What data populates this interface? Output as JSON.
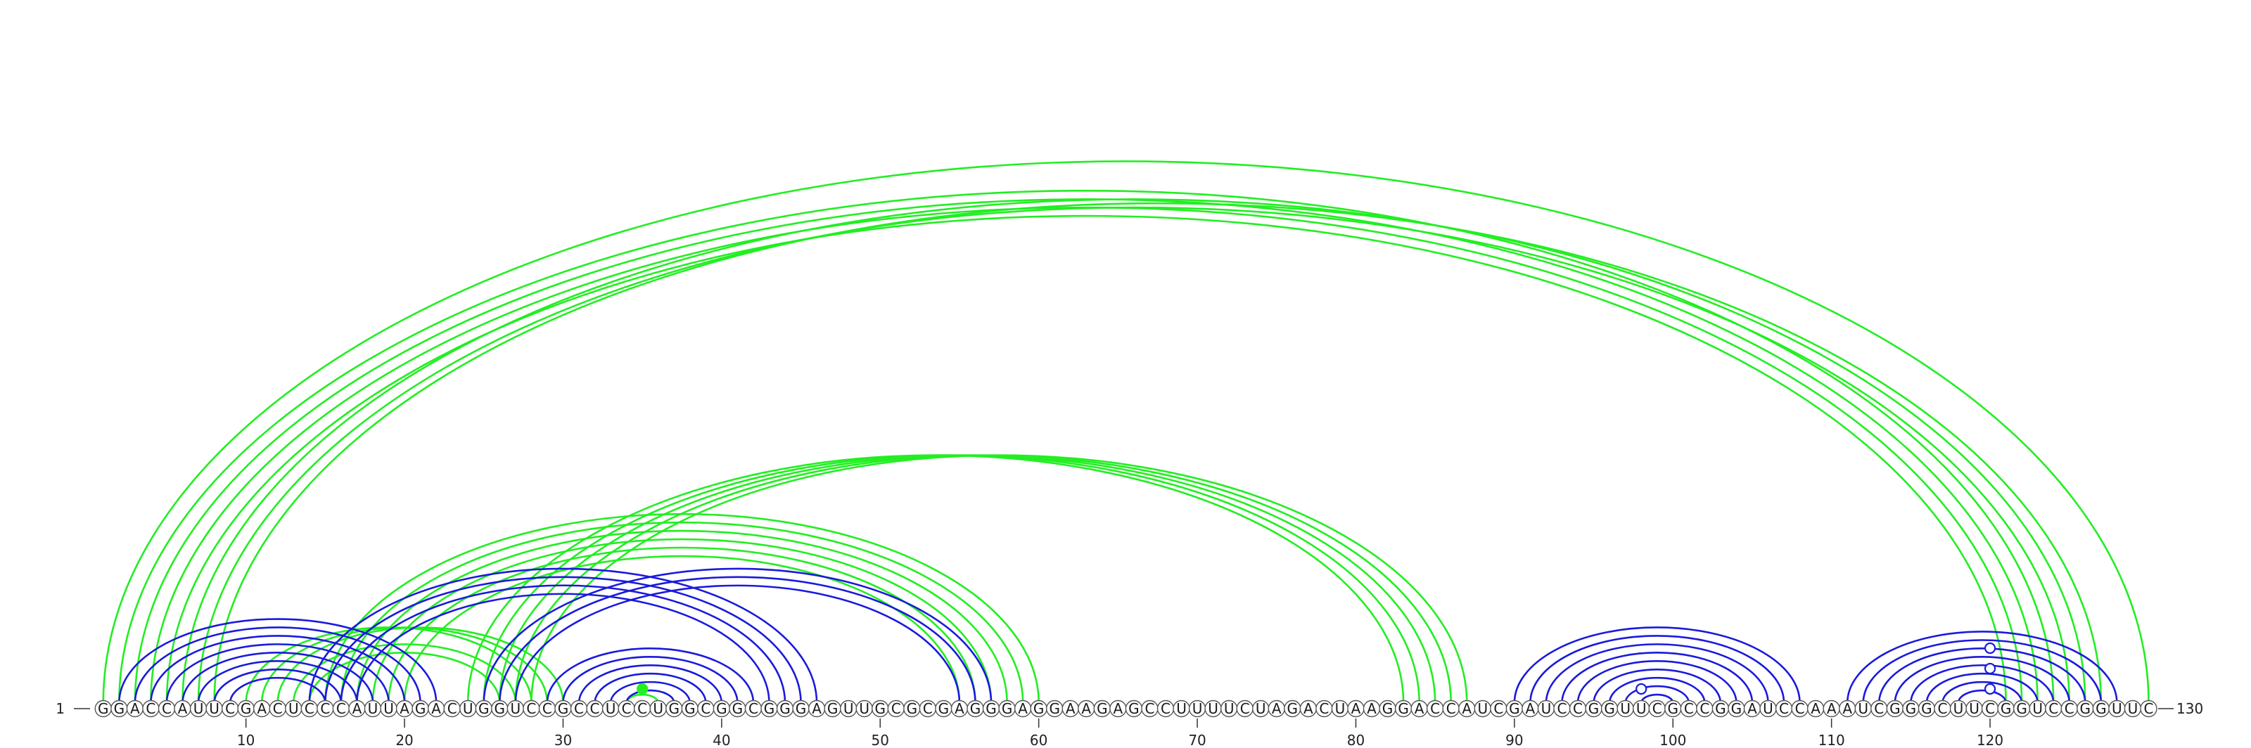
{
  "sequence": "GGACCAUUCGACUCCCAUUAGACUGGUCCGCCUCCUGGCGGCGGGAGUUGCGCGAGGGAGGAAGAGCCUUUUCUAGACUAAGGACCAUCGAUCCGGUUCGCCGGAUCCAAAUCGGGCUUCGGUCCGGUUC",
  "start_label": "1",
  "end_label": "130",
  "axis": {
    "ticks": [
      "10",
      "20",
      "30",
      "40",
      "50",
      "60",
      "70",
      "80",
      "90",
      "100",
      "110",
      "120"
    ]
  },
  "colors": {
    "blue": "#1a1adc",
    "green": "#22ee22",
    "marker_fill": "#ffffff"
  },
  "arcs": {
    "green": [
      [
        1,
        130
      ],
      [
        2,
        124
      ],
      [
        3,
        123
      ],
      [
        4,
        122
      ],
      [
        5,
        121
      ],
      [
        6,
        126
      ],
      [
        7,
        125
      ],
      [
        8,
        127
      ],
      [
        10,
        28
      ],
      [
        11,
        29
      ],
      [
        12,
        30
      ],
      [
        13,
        27
      ],
      [
        14,
        26
      ],
      [
        15,
        60
      ],
      [
        16,
        59
      ],
      [
        17,
        58
      ],
      [
        18,
        57
      ],
      [
        19,
        56
      ],
      [
        20,
        55
      ],
      [
        24,
        83
      ],
      [
        25,
        84
      ],
      [
        26,
        85
      ],
      [
        27,
        86
      ],
      [
        28,
        87
      ],
      [
        34,
        36
      ]
    ],
    "blue": [
      [
        2,
        22
      ],
      [
        3,
        21
      ],
      [
        4,
        20
      ],
      [
        5,
        19
      ],
      [
        6,
        18
      ],
      [
        7,
        17
      ],
      [
        8,
        16
      ],
      [
        9,
        15
      ],
      [
        14,
        46
      ],
      [
        15,
        45
      ],
      [
        16,
        44
      ],
      [
        17,
        43
      ],
      [
        25,
        57
      ],
      [
        26,
        56
      ],
      [
        27,
        55
      ],
      [
        29,
        42
      ],
      [
        30,
        41
      ],
      [
        31,
        40
      ],
      [
        32,
        39
      ],
      [
        33,
        38
      ],
      [
        34,
        37
      ],
      [
        90,
        108
      ],
      [
        91,
        107
      ],
      [
        92,
        106
      ],
      [
        93,
        105
      ],
      [
        94,
        104
      ],
      [
        95,
        103
      ],
      [
        96,
        102
      ],
      [
        97,
        101
      ],
      [
        98,
        100
      ],
      [
        111,
        128
      ],
      [
        112,
        127
      ],
      [
        113,
        126
      ],
      [
        114,
        125
      ],
      [
        115,
        124
      ],
      [
        116,
        123
      ],
      [
        117,
        122
      ],
      [
        118,
        121
      ]
    ]
  },
  "markers": [
    {
      "position": 35,
      "color": "green",
      "filled": true,
      "level": 1
    },
    {
      "position": 98,
      "color": "blue",
      "filled": false,
      "level": 1
    },
    {
      "position": 120,
      "color": "blue",
      "filled": false,
      "level": 1
    },
    {
      "position": 120,
      "color": "blue",
      "filled": false,
      "level": 2
    },
    {
      "position": 120,
      "color": "blue",
      "filled": false,
      "level": 3
    }
  ]
}
